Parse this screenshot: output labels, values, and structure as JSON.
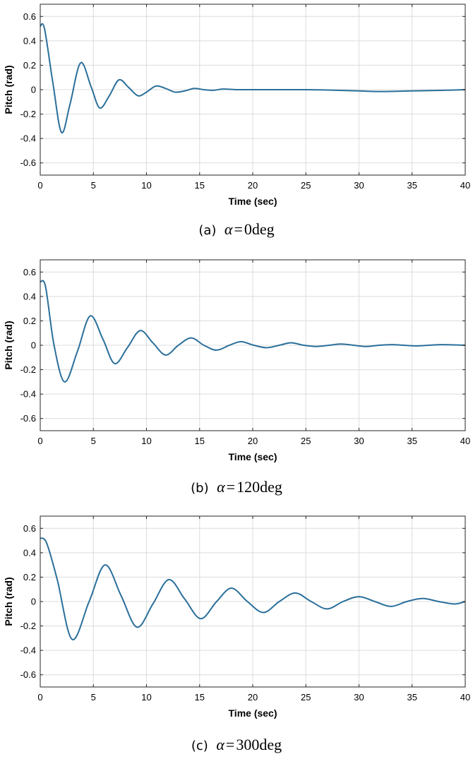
{
  "chart_data": [
    {
      "type": "line",
      "caption": {
        "label": "(a)",
        "symbol": "α",
        "eq": "=",
        "value": "0",
        "unit": "deg"
      },
      "xlabel": "Time (sec)",
      "ylabel": "Pitch (rad)",
      "xlim": [
        0,
        40
      ],
      "ylim": [
        -0.7,
        0.7
      ],
      "xticks": [
        "0",
        "5",
        "10",
        "15",
        "20",
        "25",
        "30",
        "35",
        "40"
      ],
      "yticks": [
        "0.6",
        "0.4",
        "0.2",
        "0",
        "-0.2",
        "-0.4",
        "-0.6"
      ],
      "grid": true,
      "color": "#2a6f9b",
      "series": [
        {
          "x": [
            0,
            0.4,
            1.2,
            2.0,
            2.8,
            3.8,
            4.8,
            5.6,
            6.5,
            7.4,
            8.3,
            9.2,
            10.0,
            10.9,
            11.8,
            12.7,
            13.6,
            14.5,
            15.4,
            16.3,
            17.2,
            18.5,
            20,
            25,
            28,
            30,
            32,
            35,
            38,
            40
          ],
          "y": [
            0.52,
            0.5,
            0.05,
            -0.35,
            -0.12,
            0.22,
            0.02,
            -0.15,
            -0.05,
            0.08,
            0.02,
            -0.05,
            -0.02,
            0.03,
            0.01,
            -0.02,
            -0.01,
            0.01,
            0.0,
            -0.005,
            0.005,
            0.0,
            0.0,
            0.0,
            -0.005,
            -0.01,
            -0.015,
            -0.01,
            -0.005,
            0.0
          ]
        }
      ]
    },
    {
      "type": "line",
      "caption": {
        "label": "(b)",
        "symbol": "α",
        "eq": "=",
        "value": "120",
        "unit": "deg"
      },
      "xlabel": "Time (sec)",
      "ylabel": "Pitch (rad)",
      "xlim": [
        0,
        40
      ],
      "ylim": [
        -0.7,
        0.7
      ],
      "xticks": [
        "0",
        "5",
        "10",
        "15",
        "20",
        "25",
        "30",
        "35",
        "40"
      ],
      "yticks": [
        "0.6",
        "0.4",
        "0.2",
        "0",
        "-0.2",
        "-0.4",
        "-0.6"
      ],
      "grid": true,
      "color": "#2a6f9b",
      "series": [
        {
          "x": [
            0,
            0.5,
            1.3,
            2.3,
            3.5,
            4.7,
            5.9,
            7.0,
            8.2,
            9.4,
            10.6,
            11.8,
            13.0,
            14.2,
            15.4,
            16.6,
            17.8,
            18.9,
            20.1,
            21.3,
            22.5,
            23.6,
            24.8,
            26.0,
            27.2,
            28.3,
            29.5,
            30.7,
            31.9,
            33.1,
            34.2,
            35.4,
            36.6,
            37.8,
            40
          ],
          "y": [
            0.52,
            0.48,
            0.0,
            -0.3,
            -0.05,
            0.24,
            0.05,
            -0.15,
            -0.02,
            0.12,
            0.02,
            -0.08,
            0.0,
            0.06,
            0.0,
            -0.04,
            0.0,
            0.03,
            0.0,
            -0.02,
            0.0,
            0.02,
            0.0,
            -0.01,
            0.0,
            0.01,
            0.0,
            -0.01,
            0.0,
            0.005,
            0.0,
            -0.005,
            0.0,
            0.005,
            0.0
          ]
        }
      ]
    },
    {
      "type": "line",
      "caption": {
        "label": "(c)",
        "symbol": "α",
        "eq": "=",
        "value": "300",
        "unit": "deg"
      },
      "xlabel": "Time (sec)",
      "ylabel": "Pitch (rad)",
      "xlim": [
        0,
        40
      ],
      "ylim": [
        -0.7,
        0.7
      ],
      "xticks": [
        "0",
        "5",
        "10",
        "15",
        "20",
        "25",
        "30",
        "35",
        "40"
      ],
      "yticks": [
        "0.6",
        "0.4",
        "0.2",
        "0",
        "-0.2",
        "-0.4",
        "-0.6"
      ],
      "grid": true,
      "color": "#2a6f9b",
      "series": [
        {
          "x": [
            0,
            0.6,
            1.6,
            3.0,
            4.6,
            6.1,
            7.6,
            9.1,
            10.6,
            12.1,
            13.6,
            15.1,
            16.6,
            18.0,
            19.5,
            21.0,
            22.5,
            24.0,
            25.5,
            27.0,
            28.5,
            30.0,
            31.5,
            33.0,
            34.5,
            36.0,
            37.5,
            39.0,
            40
          ],
          "y": [
            0.52,
            0.48,
            0.18,
            -0.31,
            0.0,
            0.3,
            0.05,
            -0.21,
            -0.02,
            0.18,
            0.02,
            -0.14,
            0.0,
            0.11,
            0.0,
            -0.09,
            0.0,
            0.07,
            0.0,
            -0.06,
            0.0,
            0.04,
            0.0,
            -0.04,
            0.0,
            0.025,
            0.0,
            -0.02,
            0.0
          ]
        }
      ]
    }
  ]
}
